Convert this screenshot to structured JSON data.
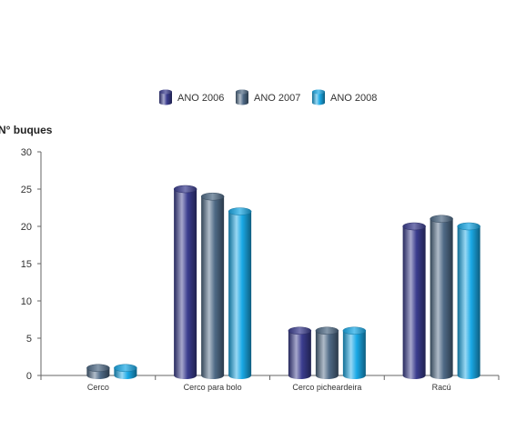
{
  "chart_data": {
    "type": "bar",
    "title": "",
    "ylabel": "N° buques",
    "xlabel": "",
    "ylim": [
      0,
      30
    ],
    "yticks": [
      0,
      5,
      10,
      15,
      20,
      25,
      30
    ],
    "categories": [
      "Cerco",
      "Cerco para bolo",
      "Cerco picheardeira",
      "Racú"
    ],
    "series": [
      {
        "name": "ANO 2006",
        "values": [
          0,
          25,
          6,
          20
        ],
        "color": "#3b3d8f"
      },
      {
        "name": "ANO 2007",
        "values": [
          1,
          24,
          6,
          21
        ],
        "color": "#4f6a86"
      },
      {
        "name": "ANO 2008",
        "values": [
          1,
          22,
          6,
          20
        ],
        "color": "#1aa9e6"
      }
    ],
    "legend_position": "top-center",
    "grid": false,
    "bar_style": "cylinder"
  }
}
